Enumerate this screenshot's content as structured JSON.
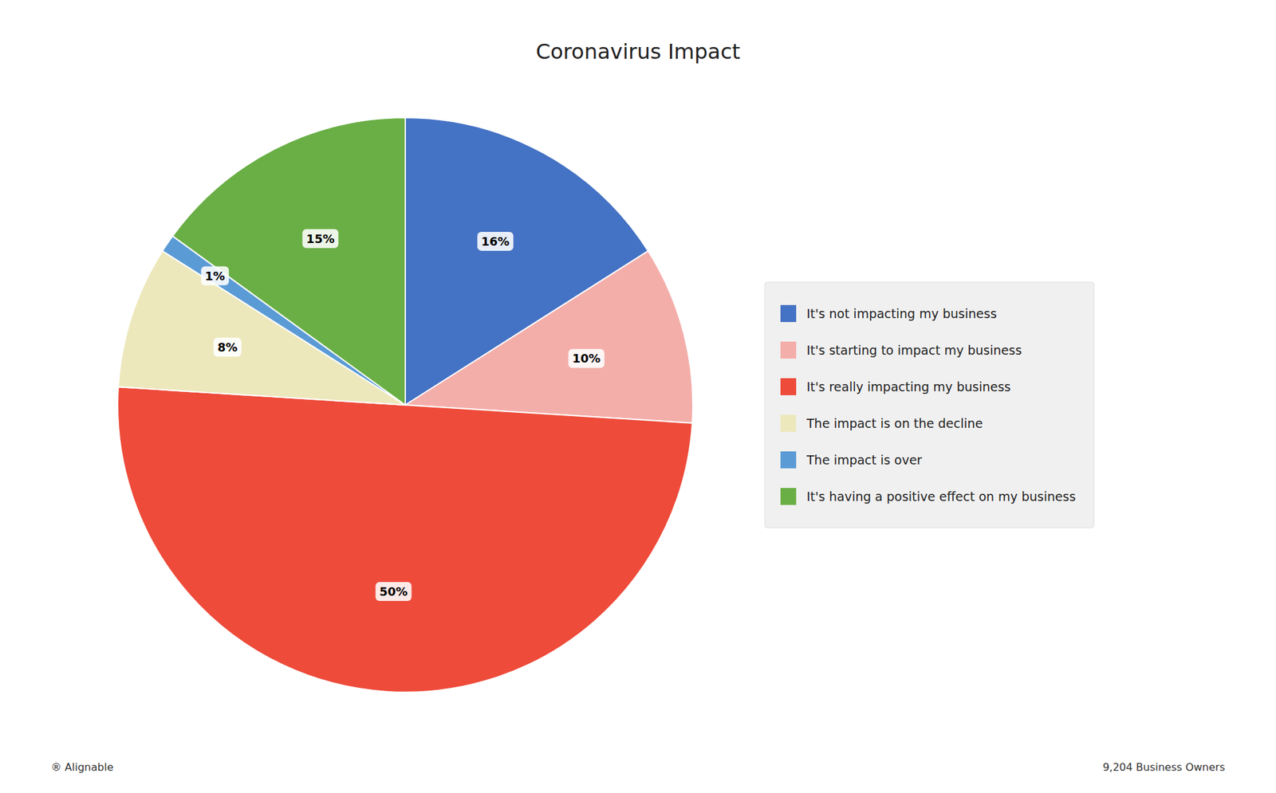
{
  "chart_data": {
    "type": "pie",
    "title": "Coronavirus Impact",
    "categories": [
      "It's not impacting my business",
      "It's starting to impact my business",
      "It's really impacting my business",
      "The impact is on the decline",
      "The impact is over",
      "It's having a positive effect on my business"
    ],
    "values": [
      16,
      10,
      50,
      8,
      1,
      15
    ],
    "value_labels": [
      "16%",
      "10%",
      "50%",
      "8%",
      "1%",
      "15%"
    ],
    "colors": [
      "#4472C4",
      "#F4AEAA",
      "#EE4B3A",
      "#EDE8BC",
      "#5B9BD5",
      "#6AAF45"
    ],
    "data_labels": true,
    "legend": "right",
    "annotations": [
      "® Alignable",
      "9,204 Business Owners"
    ]
  }
}
